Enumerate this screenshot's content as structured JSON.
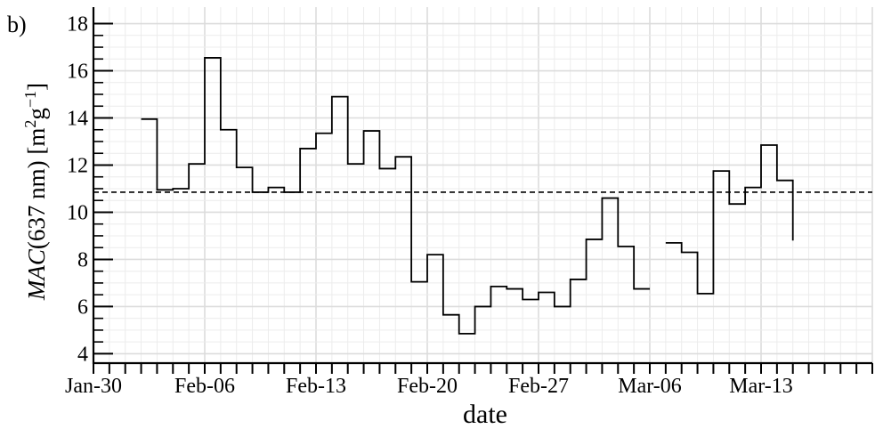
{
  "chart_data": {
    "type": "line",
    "step": true,
    "panel_label": "b)",
    "title": "",
    "xlabel": "date",
    "ylabel": {
      "italic": "MAC",
      "rest": "(637 nm) [m",
      "sup1": "2",
      "mid": "g",
      "sup2": "−1",
      "end": "]"
    },
    "xlim": [
      "2023-01-30",
      "2023-03-20"
    ],
    "ylim": [
      3.6,
      18.7
    ],
    "x_ticks": [
      {
        "date": "2023-01-30",
        "label": "Jan-30"
      },
      {
        "date": "2023-02-06",
        "label": "Feb-06"
      },
      {
        "date": "2023-02-13",
        "label": "Feb-13"
      },
      {
        "date": "2023-02-20",
        "label": "Feb-20"
      },
      {
        "date": "2023-02-27",
        "label": "Feb-27"
      },
      {
        "date": "2023-03-06",
        "label": "Mar-06"
      },
      {
        "date": "2023-03-13",
        "label": "Mar-13"
      }
    ],
    "y_ticks": [
      4,
      6,
      8,
      10,
      12,
      14,
      16,
      18
    ],
    "grid": true,
    "reference_line": {
      "y": 10.85,
      "style": "dashed"
    },
    "series": [
      {
        "segments": [
          {
            "x": [
              "2023-02-02",
              "2023-02-03",
              "2023-02-04",
              "2023-02-05",
              "2023-02-06",
              "2023-02-07",
              "2023-02-08",
              "2023-02-09",
              "2023-02-10",
              "2023-02-11",
              "2023-02-12",
              "2023-02-13",
              "2023-02-14",
              "2023-02-15",
              "2023-02-16",
              "2023-02-17",
              "2023-02-18",
              "2023-02-19",
              "2023-02-20",
              "2023-02-21",
              "2023-02-22",
              "2023-02-23",
              "2023-02-24",
              "2023-02-25",
              "2023-02-26",
              "2023-02-27",
              "2023-02-28",
              "2023-03-01",
              "2023-03-02",
              "2023-03-03",
              "2023-03-04",
              "2023-03-05",
              "2023-03-06"
            ],
            "y": [
              13.95,
              10.95,
              11.0,
              12.05,
              16.55,
              13.5,
              11.9,
              10.85,
              11.05,
              10.85,
              12.7,
              13.35,
              14.9,
              12.05,
              13.45,
              11.85,
              12.35,
              7.05,
              8.2,
              5.65,
              4.85,
              6.0,
              6.85,
              6.75,
              6.3,
              6.6,
              6.0,
              7.15,
              8.85,
              10.6,
              8.55,
              6.75,
              6.75
            ]
          },
          {
            "x": [
              "2023-03-07",
              "2023-03-08",
              "2023-03-09",
              "2023-03-10",
              "2023-03-11",
              "2023-03-12",
              "2023-03-13",
              "2023-03-14",
              "2023-03-15"
            ],
            "y": [
              8.7,
              8.3,
              6.55,
              11.75,
              10.35,
              11.05,
              12.85,
              11.35,
              8.8
            ]
          }
        ]
      }
    ]
  }
}
